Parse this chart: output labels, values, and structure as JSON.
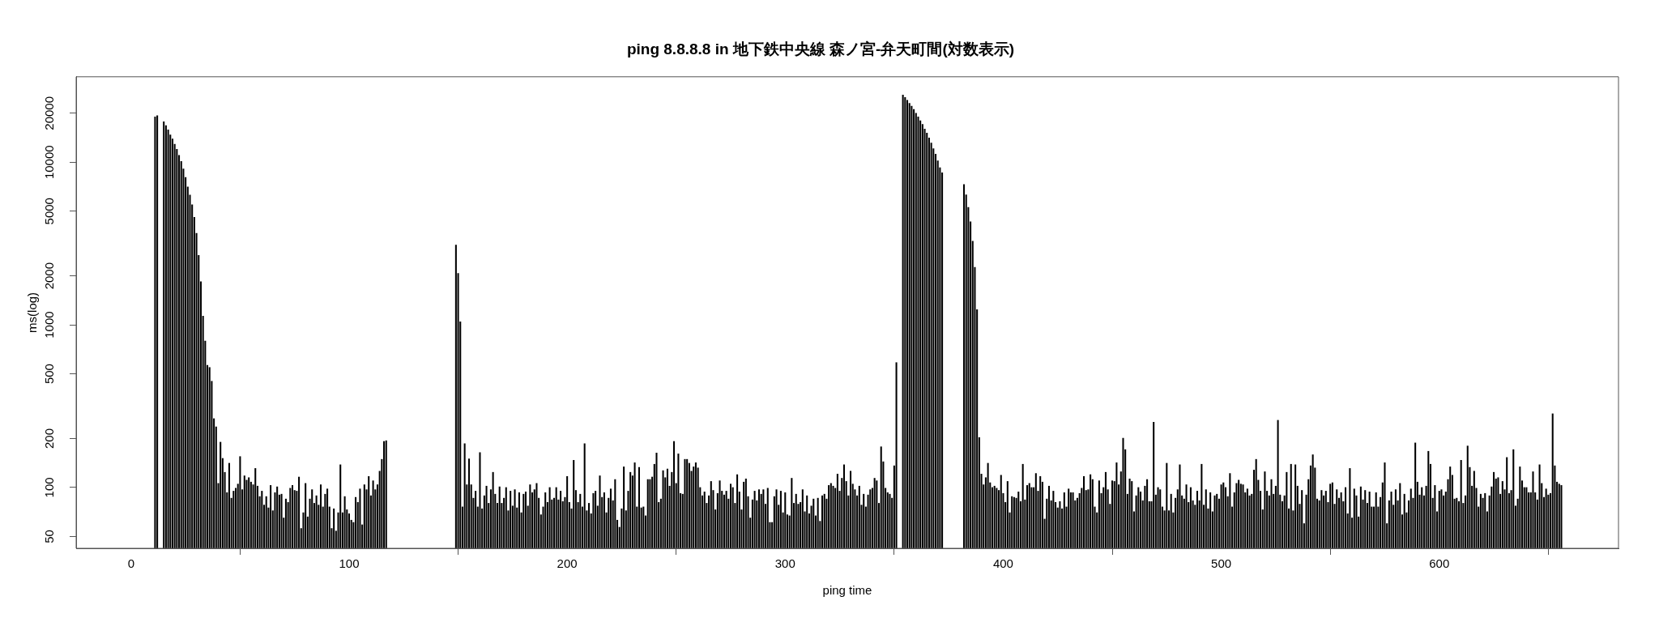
{
  "chart_data": {
    "type": "bar",
    "title": "ping 8.8.8.8 in 地下鉄中央線 森ノ宮-弁天町間(対数表示)",
    "xlabel": "ping time",
    "ylabel": "ms(log)",
    "color": "#000000",
    "log": "y",
    "grid": false,
    "legend": false,
    "xlim": [
      -25.2,
      682.2
    ],
    "xticks": [
      0,
      100,
      200,
      300,
      400,
      500,
      600
    ],
    "ylim": [
      42.3,
      33500
    ],
    "yticks": [
      50,
      100,
      200,
      500,
      1000,
      2000,
      5000,
      10000,
      20000
    ],
    "x": [
      11,
      12,
      13,
      14,
      15,
      16,
      17,
      18,
      19,
      20,
      21,
      22,
      23,
      24,
      25,
      26,
      27,
      28,
      29,
      30,
      31,
      32,
      33,
      34,
      35,
      36,
      37,
      38,
      39,
      40,
      41,
      42,
      43,
      44,
      45,
      46,
      47,
      48,
      49,
      50,
      51,
      52,
      53,
      54,
      55,
      56,
      57,
      58,
      59,
      60,
      61,
      62,
      63,
      64,
      65,
      66,
      67,
      68,
      69,
      70,
      71,
      72,
      73,
      74,
      75,
      76,
      77,
      78,
      79,
      80,
      81,
      82,
      83,
      84,
      85,
      86,
      87,
      88,
      89,
      90,
      91,
      92,
      93,
      94,
      95,
      96,
      97,
      98,
      99,
      100,
      101,
      102,
      103,
      104,
      105,
      106,
      107,
      108,
      109,
      110,
      111,
      112,
      113,
      114,
      115,
      116,
      117,
      118,
      119,
      120,
      121,
      122,
      123,
      124,
      125,
      126,
      127,
      128,
      129,
      130,
      131,
      132,
      133,
      134,
      135,
      136,
      137,
      138,
      139,
      140,
      141,
      142,
      143,
      144,
      145,
      146,
      147,
      148,
      149,
      150,
      151,
      152,
      153,
      154,
      155,
      156,
      157,
      158,
      159,
      160,
      161,
      162,
      163,
      164,
      165,
      166,
      167,
      168,
      169,
      170,
      171,
      172,
      173,
      174,
      175,
      176,
      177,
      178,
      179,
      180,
      181,
      182,
      183,
      184,
      185,
      186,
      187,
      188,
      189,
      190,
      191,
      192,
      193,
      194,
      195,
      196,
      197,
      198,
      199,
      200,
      201,
      202,
      203,
      204,
      205,
      206,
      207,
      208,
      209,
      210,
      211,
      212,
      213,
      214,
      215,
      216,
      217,
      218,
      219,
      220,
      221,
      222,
      223,
      224,
      225,
      226,
      227,
      228,
      229,
      230,
      231,
      232,
      233,
      234,
      235,
      236,
      237,
      238,
      239,
      240,
      241,
      242,
      243,
      244,
      245,
      246,
      247,
      248,
      249,
      250,
      251,
      252,
      253,
      254,
      255,
      256,
      257,
      258,
      259,
      260,
      261,
      262,
      263,
      264,
      265,
      266,
      267,
      268,
      269,
      270,
      271,
      272,
      273,
      274,
      275,
      276,
      277,
      278,
      279,
      280,
      281,
      282,
      283,
      284,
      285,
      286,
      287,
      288,
      289,
      290,
      291,
      292,
      293,
      294,
      295,
      296,
      297,
      298,
      299,
      300,
      301,
      302,
      303,
      304,
      305,
      306,
      307,
      308,
      309,
      310,
      311,
      312,
      313,
      314,
      315,
      316,
      317,
      318,
      319,
      320,
      321,
      322,
      323,
      324,
      325,
      326,
      327,
      328,
      329,
      330,
      331,
      332,
      333,
      334,
      335,
      336,
      337,
      338,
      339,
      340,
      341,
      342,
      343,
      344,
      345,
      346,
      347,
      348,
      349,
      350,
      351,
      352,
      353,
      354,
      355,
      356,
      357,
      358,
      359,
      360,
      361,
      362,
      363,
      364,
      365,
      366,
      367,
      368,
      369,
      370,
      371,
      372,
      373,
      374,
      375,
      376,
      377,
      378,
      379,
      380,
      381,
      382,
      383,
      384,
      385,
      386,
      387,
      388,
      389,
      390,
      391,
      392,
      393,
      394,
      395,
      396,
      397,
      398,
      399,
      400,
      401,
      402,
      403,
      404,
      405,
      406,
      407,
      408,
      409,
      410,
      411,
      412,
      413,
      414,
      415,
      416,
      417,
      418,
      419,
      420,
      421,
      422,
      423,
      424,
      425,
      426,
      427,
      428,
      429,
      430,
      431,
      432,
      433,
      434,
      435,
      436,
      437,
      438,
      439,
      440,
      441,
      442,
      443,
      444,
      445,
      446,
      447,
      448,
      449,
      450,
      451,
      452,
      453,
      454,
      455,
      456,
      457,
      458,
      459,
      460,
      461,
      462,
      463,
      464,
      465,
      466,
      467,
      468,
      469,
      470,
      471,
      472,
      473,
      474,
      475,
      476,
      477,
      478,
      479,
      480,
      481,
      482,
      483,
      484,
      485,
      486,
      487,
      488,
      489,
      490,
      491,
      492,
      493,
      494,
      495,
      496,
      497,
      498,
      499,
      500,
      501,
      502,
      503,
      504,
      505,
      506,
      507,
      508,
      509,
      510,
      511,
      512,
      513,
      514,
      515,
      516,
      517,
      518,
      519,
      520,
      521,
      522,
      523,
      524,
      525,
      526,
      527,
      528,
      529,
      530,
      531,
      532,
      533,
      534,
      535,
      536,
      537,
      538,
      539,
      540,
      541,
      542,
      543,
      544,
      545,
      546,
      547,
      548,
      549,
      550,
      551,
      552,
      553,
      554,
      555,
      556,
      557,
      558,
      559,
      560,
      561,
      562,
      563,
      564,
      565,
      566,
      567,
      568,
      569,
      570,
      571,
      572,
      573,
      574,
      575,
      576,
      577,
      578,
      579,
      580,
      581,
      582,
      583,
      584,
      585,
      586,
      587,
      588,
      589,
      590,
      591,
      592,
      593,
      594,
      595,
      596,
      597,
      598,
      599,
      600,
      601,
      602,
      603,
      604,
      605,
      606,
      607,
      608,
      609,
      610,
      611,
      612,
      613,
      614,
      615,
      616,
      617,
      618,
      619,
      620,
      621,
      622,
      623,
      624,
      625,
      626,
      627,
      628,
      629,
      630,
      631,
      632,
      633,
      634,
      635,
      636,
      637,
      638,
      639,
      640,
      641,
      642,
      643,
      644,
      645,
      646,
      647,
      648,
      649,
      650,
      651,
      652,
      653,
      654,
      655,
      656
    ],
    "values": [
      19000,
      19300,
      null,
      null,
      17700,
      16800,
      15800,
      14700,
      13900,
      12900,
      12000,
      11000,
      10100,
      9100,
      8060,
      7050,
      6280,
      5470,
      4580,
      3650,
      2670,
      1840,
      1130,
      795,
      564,
      547,
      450,
      265,
      236,
      106,
      190,
      151,
      124,
      93,
      141,
      86,
      95,
      99,
      105,
      155,
      97,
      118,
      111,
      115,
      108,
      104,
      131,
      102,
      88,
      95,
      78,
      88,
      75,
      103,
      72,
      93,
      101,
      90,
      91,
      65,
      85,
      81,
      99,
      103,
      96,
      95,
      116,
      56,
      70,
      106,
      66,
      85,
      97,
      80,
      89,
      78,
      104,
      76,
      91,
      98,
      76,
      56,
      74,
      54,
      70,
      138,
      70,
      88,
      73,
      69,
      63,
      61,
      87,
      81,
      98,
      59,
      104,
      97,
      117,
      89,
      110,
      97,
      104,
      126,
      149,
      192,
      194,
      null,
      null,
      null,
      null,
      null,
      null,
      null,
      null,
      null,
      null,
      null,
      null,
      null,
      null,
      null,
      null,
      null,
      null,
      null,
      null,
      null,
      null,
      null,
      null,
      null,
      null,
      null,
      null,
      null,
      null,
      null,
      3090,
      2070,
      1044,
      76,
      186,
      104,
      150,
      104,
      86,
      95,
      76,
      164,
      74,
      89,
      102,
      80,
      97,
      124,
      91,
      80,
      101,
      80,
      86,
      100,
      72,
      95,
      77,
      97,
      75,
      93,
      70,
      91,
      94,
      77,
      104,
      93,
      97,
      106,
      86,
      68,
      76,
      93,
      81,
      100,
      84,
      86,
      100,
      84,
      95,
      82,
      87,
      117,
      81,
      74,
      147,
      96,
      81,
      91,
      76,
      186,
      72,
      80,
      69,
      92,
      95,
      77,
      118,
      87,
      93,
      70,
      86,
      98,
      83,
      112,
      63,
      57,
      74,
      134,
      72,
      95,
      124,
      118,
      142,
      76,
      133,
      75,
      76,
      67,
      112,
      112,
      116,
      139,
      163,
      81,
      85,
      127,
      115,
      130,
      102,
      124,
      192,
      106,
      161,
      92,
      91,
      149,
      149,
      141,
      126,
      134,
      142,
      132,
      100,
      89,
      94,
      80,
      89,
      109,
      96,
      73,
      92,
      110,
      95,
      90,
      95,
      85,
      105,
      100,
      80,
      120,
      94,
      73,
      108,
      113,
      88,
      65,
      84,
      95,
      83,
      97,
      91,
      97,
      79,
      99,
      61,
      61,
      88,
      97,
      78,
      95,
      70,
      93,
      68,
      67,
      114,
      80,
      91,
      79,
      81,
      97,
      71,
      89,
      69,
      77,
      85,
      67,
      86,
      62,
      89,
      91,
      85,
      103,
      106,
      102,
      99,
      121,
      95,
      114,
      138,
      109,
      89,
      126,
      105,
      97,
      89,
      102,
      78,
      91,
      76,
      90,
      97,
      99,
      114,
      110,
      80,
      178,
      144,
      99,
      93,
      91,
      86,
      136,
      586,
      null,
      null,
      25900,
      25000,
      24000,
      23000,
      22100,
      21100,
      20000,
      19000,
      18000,
      17100,
      16000,
      15100,
      14100,
      13100,
      12100,
      11200,
      10200,
      9250,
      8600,
      null,
      null,
      null,
      null,
      null,
      null,
      null,
      null,
      null,
      7300,
      6300,
      5280,
      4300,
      3270,
      2260,
      1240,
      203,
      121,
      104,
      115,
      141,
      107,
      100,
      102,
      99,
      96,
      119,
      92,
      81,
      109,
      70,
      88,
      87,
      86,
      94,
      82,
      139,
      84,
      103,
      106,
      100,
      100,
      122,
      95,
      117,
      108,
      64,
      85,
      102,
      83,
      95,
      81,
      75,
      82,
      74,
      93,
      76,
      98,
      93,
      93,
      83,
      86,
      92,
      99,
      117,
      96,
      97,
      120,
      112,
      76,
      70,
      110,
      92,
      100,
      124,
      97,
      79,
      110,
      109,
      142,
      104,
      125,
      201,
      171,
      91,
      113,
      109,
      71,
      89,
      100,
      94,
      83,
      102,
      112,
      82,
      82,
      252,
      90,
      100,
      97,
      76,
      72,
      141,
      72,
      91,
      70,
      86,
      97,
      138,
      89,
      85,
      104,
      81,
      100,
      83,
      78,
      95,
      83,
      139,
      78,
      97,
      74,
      93,
      71,
      89,
      91,
      85,
      104,
      107,
      100,
      88,
      122,
      76,
      93,
      106,
      111,
      105,
      104,
      93,
      98,
      89,
      91,
      128,
      149,
      111,
      95,
      73,
      125,
      95,
      89,
      112,
      91,
      102,
      259,
      90,
      82,
      89,
      124,
      74,
      139,
      72,
      138,
      102,
      79,
      96,
      60,
      90,
      112,
      136,
      159,
      132,
      85,
      83,
      96,
      89,
      95,
      81,
      105,
      107,
      79,
      97,
      86,
      93,
      82,
      100,
      69,
      131,
      65,
      98,
      89,
      66,
      101,
      84,
      96,
      80,
      94,
      76,
      76,
      93,
      76,
      87,
      107,
      142,
      60,
      83,
      94,
      78,
      97,
      83,
      106,
      68,
      91,
      70,
      83,
      98,
      86,
      188,
      108,
      90,
      100,
      89,
      102,
      167,
      139,
      86,
      103,
      71,
      95,
      97,
      89,
      94,
      112,
      134,
      119,
      85,
      86,
      82,
      147,
      80,
      89,
      180,
      133,
      102,
      126,
      99,
      76,
      91,
      86,
      92,
      71,
      89,
      101,
      124,
      113,
      115,
      91,
      109,
      97,
      153,
      92,
      96,
      171,
      77,
      85,
      134,
      110,
      100,
      100,
      93,
      93,
      125,
      93,
      84,
      138,
      106,
      87,
      98,
      90,
      92,
      284,
      136,
      108,
      105,
      103
    ]
  }
}
